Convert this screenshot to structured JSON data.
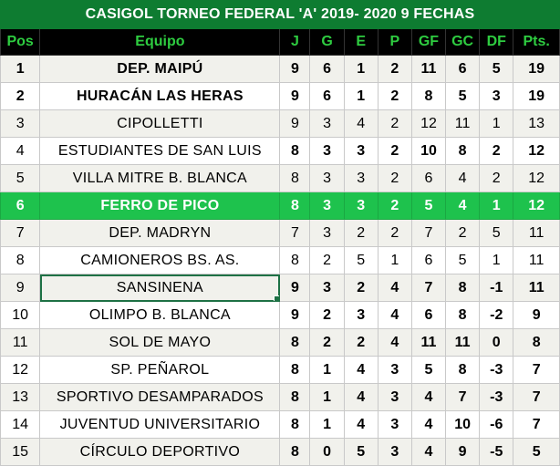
{
  "title": "CASIGOL TORNEO FEDERAL 'A' 2019- 2020  9 FECHAS",
  "headers": [
    "Pos",
    "Equipo",
    "J",
    "G",
    "E",
    "P",
    "GF",
    "GC",
    "DF",
    "Pts."
  ],
  "colors": {
    "title_bg": "#0e7c31",
    "header_bg": "#000000",
    "header_text": "#2ecc40",
    "highlight_bg": "#1ec24d",
    "shade_bg": "#f1f1ec"
  },
  "rows": [
    {
      "pos": "1",
      "team": "DEP. MAIPÚ",
      "j": "9",
      "g": "6",
      "e": "1",
      "p": "2",
      "gf": "11",
      "gc": "6",
      "df": "5",
      "pts": "19",
      "bold": true,
      "shade": true
    },
    {
      "pos": "2",
      "team": "HURACÁN LAS HERAS",
      "j": "9",
      "g": "6",
      "e": "1",
      "p": "2",
      "gf": "8",
      "gc": "5",
      "df": "3",
      "pts": "19",
      "bold": true,
      "shade": false
    },
    {
      "pos": "3",
      "team": "CIPOLLETTI",
      "j": "9",
      "g": "3",
      "e": "4",
      "p": "2",
      "gf": "12",
      "gc": "11",
      "df": "1",
      "pts": "13",
      "bold": false,
      "shade": true
    },
    {
      "pos": "4",
      "team": "ESTUDIANTES DE SAN LUIS",
      "j": "8",
      "g": "3",
      "e": "3",
      "p": "2",
      "gf": "10",
      "gc": "8",
      "df": "2",
      "pts": "12",
      "bold": false,
      "shade": false,
      "bold_stats": true
    },
    {
      "pos": "5",
      "team": "VILLA MITRE B. BLANCA",
      "j": "8",
      "g": "3",
      "e": "3",
      "p": "2",
      "gf": "6",
      "gc": "4",
      "df": "2",
      "pts": "12",
      "bold": false,
      "shade": true
    },
    {
      "pos": "6",
      "team": "FERRO DE PICO",
      "j": "8",
      "g": "3",
      "e": "3",
      "p": "2",
      "gf": "5",
      "gc": "4",
      "df": "1",
      "pts": "12",
      "bold": true,
      "shade": false,
      "highlight": true
    },
    {
      "pos": "7",
      "team": "DEP. MADRYN",
      "j": "7",
      "g": "3",
      "e": "2",
      "p": "2",
      "gf": "7",
      "gc": "2",
      "df": "5",
      "pts": "11",
      "bold": false,
      "shade": true
    },
    {
      "pos": "8",
      "team": "CAMIONEROS BS. AS.",
      "j": "8",
      "g": "2",
      "e": "5",
      "p": "1",
      "gf": "6",
      "gc": "5",
      "df": "1",
      "pts": "11",
      "bold": false,
      "shade": false
    },
    {
      "pos": "9",
      "team": "SANSINENA",
      "j": "9",
      "g": "3",
      "e": "2",
      "p": "4",
      "gf": "7",
      "gc": "8",
      "df": "-1",
      "pts": "11",
      "bold": false,
      "shade": true,
      "bold_stats": true,
      "selected": true
    },
    {
      "pos": "10",
      "team": "OLIMPO B. BLANCA",
      "j": "9",
      "g": "2",
      "e": "3",
      "p": "4",
      "gf": "6",
      "gc": "8",
      "df": "-2",
      "pts": "9",
      "bold": false,
      "shade": false,
      "bold_stats": true
    },
    {
      "pos": "11",
      "team": "SOL DE MAYO",
      "j": "8",
      "g": "2",
      "e": "2",
      "p": "4",
      "gf": "11",
      "gc": "11",
      "df": "0",
      "pts": "8",
      "bold": false,
      "shade": true,
      "bold_stats": true
    },
    {
      "pos": "12",
      "team": "SP. PEÑAROL",
      "j": "8",
      "g": "1",
      "e": "4",
      "p": "3",
      "gf": "5",
      "gc": "8",
      "df": "-3",
      "pts": "7",
      "bold": false,
      "shade": false,
      "bold_stats": true
    },
    {
      "pos": "13",
      "team": "SPORTIVO DESAMPARADOS",
      "j": "8",
      "g": "1",
      "e": "4",
      "p": "3",
      "gf": "4",
      "gc": "7",
      "df": "-3",
      "pts": "7",
      "bold": false,
      "shade": true,
      "bold_stats": true
    },
    {
      "pos": "14",
      "team": "JUVENTUD UNIVERSITARIO",
      "j": "8",
      "g": "1",
      "e": "4",
      "p": "3",
      "gf": "4",
      "gc": "10",
      "df": "-6",
      "pts": "7",
      "bold": false,
      "shade": false,
      "bold_stats": true
    },
    {
      "pos": "15",
      "team": "CÍRCULO DEPORTIVO",
      "j": "8",
      "g": "0",
      "e": "5",
      "p": "3",
      "gf": "4",
      "gc": "9",
      "df": "-5",
      "pts": "5",
      "bold": false,
      "shade": true,
      "bold_stats": true
    }
  ]
}
